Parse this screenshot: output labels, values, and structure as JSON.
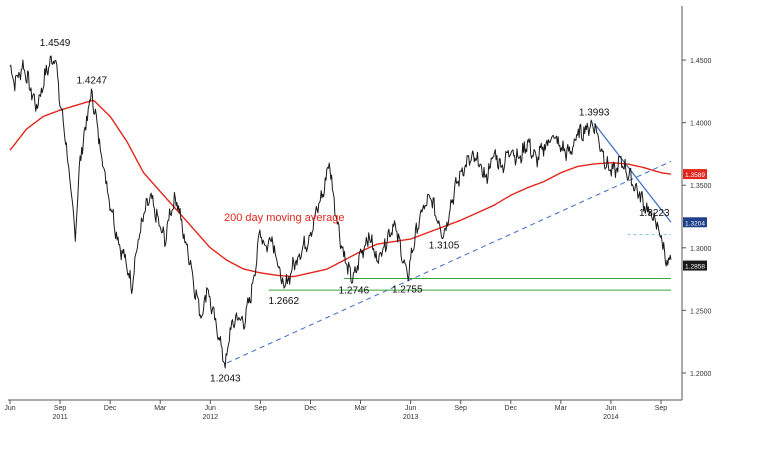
{
  "chart_data": {
    "type": "line",
    "colors": {
      "price": "#1a1a1a",
      "ma": "#e3261c",
      "support": "#3aa53a",
      "trend_down": "#3b6cc4",
      "trend_up": "#3b6cc4",
      "ma_tag_bg": "#e3261c",
      "last_tag_bg": "#1a1a1a",
      "trend_tag_bg": "#1f3f8a"
    },
    "ylim": [
      1.18,
      1.49
    ],
    "y_ticks": [
      "1.2000",
      "1.2500",
      "1.3000",
      "1.3500",
      "1.4000",
      "1.4500"
    ],
    "x_ticks": [
      {
        "label": "Jun",
        "t": 0
      },
      {
        "label": "Sep",
        "t": 3
      },
      {
        "label": "Dec",
        "t": 6
      },
      {
        "label": "Mar",
        "t": 9
      },
      {
        "label": "Jun",
        "t": 12
      },
      {
        "label": "Sep",
        "t": 15
      },
      {
        "label": "Dec",
        "t": 18
      },
      {
        "label": "Mar",
        "t": 21
      },
      {
        "label": "Jun",
        "t": 24
      },
      {
        "label": "Sep",
        "t": 27
      },
      {
        "label": "Dec",
        "t": 30
      },
      {
        "label": "Mar",
        "t": 33
      },
      {
        "label": "Jun",
        "t": 36
      },
      {
        "label": "Sep",
        "t": 39
      }
    ],
    "year_labels": [
      {
        "label": "2011",
        "t": 3
      },
      {
        "label": "2012",
        "t": 12
      },
      {
        "label": "2013",
        "t": 24
      },
      {
        "label": "2014",
        "t": 36
      }
    ],
    "ma_label": "200 day moving average",
    "tags": {
      "ma": "1.3589",
      "trend": "1.3204",
      "last": "1.2858"
    },
    "price_anchors": [
      [
        0,
        1.445
      ],
      [
        0.3,
        1.432
      ],
      [
        0.8,
        1.446
      ],
      [
        1.2,
        1.428
      ],
      [
        1.6,
        1.412
      ],
      [
        2.2,
        1.442
      ],
      [
        2.7,
        1.4549
      ],
      [
        3.0,
        1.415
      ],
      [
        3.3,
        1.392
      ],
      [
        3.6,
        1.35
      ],
      [
        3.9,
        1.31
      ],
      [
        4.2,
        1.37
      ],
      [
        4.5,
        1.395
      ],
      [
        4.9,
        1.4247
      ],
      [
        5.3,
        1.39
      ],
      [
        5.8,
        1.35
      ],
      [
        6.1,
        1.33
      ],
      [
        6.5,
        1.305
      ],
      [
        6.9,
        1.29
      ],
      [
        7.3,
        1.27
      ],
      [
        7.6,
        1.3
      ],
      [
        8.0,
        1.325
      ],
      [
        8.4,
        1.34
      ],
      [
        8.9,
        1.32
      ],
      [
        9.3,
        1.305
      ],
      [
        9.6,
        1.33
      ],
      [
        10.0,
        1.34
      ],
      [
        10.4,
        1.31
      ],
      [
        10.8,
        1.29
      ],
      [
        11.1,
        1.265
      ],
      [
        11.5,
        1.245
      ],
      [
        11.8,
        1.27
      ],
      [
        12.2,
        1.245
      ],
      [
        12.6,
        1.225
      ],
      [
        12.9,
        1.2043
      ],
      [
        13.2,
        1.235
      ],
      [
        13.6,
        1.245
      ],
      [
        14.0,
        1.24
      ],
      [
        14.4,
        1.26
      ],
      [
        14.7,
        1.285
      ],
      [
        15.0,
        1.315
      ],
      [
        15.3,
        1.3
      ],
      [
        15.7,
        1.31
      ],
      [
        16.0,
        1.29
      ],
      [
        16.4,
        1.2662
      ],
      [
        16.8,
        1.28
      ],
      [
        17.3,
        1.295
      ],
      [
        17.8,
        1.305
      ],
      [
        18.2,
        1.32
      ],
      [
        18.5,
        1.335
      ],
      [
        18.8,
        1.345
      ],
      [
        19.1,
        1.37
      ],
      [
        19.5,
        1.33
      ],
      [
        19.9,
        1.3
      ],
      [
        20.3,
        1.28
      ],
      [
        20.6,
        1.2746
      ],
      [
        21.0,
        1.295
      ],
      [
        21.5,
        1.31
      ],
      [
        22.0,
        1.29
      ],
      [
        22.5,
        1.305
      ],
      [
        23.0,
        1.32
      ],
      [
        23.4,
        1.3
      ],
      [
        23.8,
        1.2755
      ],
      [
        24.2,
        1.305
      ],
      [
        24.7,
        1.33
      ],
      [
        25.2,
        1.34
      ],
      [
        25.7,
        1.32
      ],
      [
        26.0,
        1.3105
      ],
      [
        26.5,
        1.34
      ],
      [
        27.0,
        1.36
      ],
      [
        27.5,
        1.37
      ],
      [
        28.0,
        1.37
      ],
      [
        28.5,
        1.355
      ],
      [
        29.0,
        1.375
      ],
      [
        29.5,
        1.365
      ],
      [
        30.0,
        1.38
      ],
      [
        30.5,
        1.37
      ],
      [
        31.0,
        1.385
      ],
      [
        31.5,
        1.37
      ],
      [
        32.0,
        1.38
      ],
      [
        32.5,
        1.39
      ],
      [
        33.0,
        1.38
      ],
      [
        33.5,
        1.375
      ],
      [
        34.0,
        1.39
      ],
      [
        34.5,
        1.395
      ],
      [
        35.0,
        1.3993
      ],
      [
        35.4,
        1.38
      ],
      [
        35.8,
        1.365
      ],
      [
        36.2,
        1.36
      ],
      [
        36.6,
        1.37
      ],
      [
        37.0,
        1.36
      ],
      [
        37.4,
        1.35
      ],
      [
        37.8,
        1.34
      ],
      [
        38.2,
        1.33
      ],
      [
        38.6,
        1.3223
      ],
      [
        39.0,
        1.31
      ],
      [
        39.3,
        1.29
      ],
      [
        39.6,
        1.2858
      ]
    ],
    "ma_anchors": [
      [
        0,
        1.378
      ],
      [
        1.0,
        1.395
      ],
      [
        2.0,
        1.405
      ],
      [
        3.0,
        1.41
      ],
      [
        4.0,
        1.414
      ],
      [
        5.0,
        1.418
      ],
      [
        6.0,
        1.405
      ],
      [
        7.0,
        1.385
      ],
      [
        8.0,
        1.36
      ],
      [
        9.0,
        1.345
      ],
      [
        10.0,
        1.33
      ],
      [
        11.0,
        1.315
      ],
      [
        12.0,
        1.3
      ],
      [
        13.0,
        1.29
      ],
      [
        14.0,
        1.283
      ],
      [
        15.0,
        1.28
      ],
      [
        16.0,
        1.278
      ],
      [
        17.0,
        1.277
      ],
      [
        18.0,
        1.28
      ],
      [
        19.0,
        1.283
      ],
      [
        20.0,
        1.29
      ],
      [
        21.0,
        1.297
      ],
      [
        22.0,
        1.303
      ],
      [
        23.0,
        1.305
      ],
      [
        24.0,
        1.307
      ],
      [
        25.0,
        1.312
      ],
      [
        26.0,
        1.317
      ],
      [
        27.0,
        1.322
      ],
      [
        28.0,
        1.328
      ],
      [
        29.0,
        1.334
      ],
      [
        30.0,
        1.342
      ],
      [
        31.0,
        1.348
      ],
      [
        32.0,
        1.353
      ],
      [
        33.0,
        1.36
      ],
      [
        34.0,
        1.365
      ],
      [
        35.0,
        1.367
      ],
      [
        36.0,
        1.368
      ],
      [
        37.0,
        1.367
      ],
      [
        38.0,
        1.364
      ],
      [
        39.0,
        1.36
      ],
      [
        39.6,
        1.3589
      ]
    ],
    "support_lines": [
      {
        "t1": 15.5,
        "t2": 39.6,
        "y": 1.2662
      },
      {
        "t1": 20.0,
        "t2": 39.6,
        "y": 1.2755
      }
    ],
    "resistance_dashed": {
      "t1": 37.0,
      "t2": 39.6,
      "y": 1.3105
    },
    "trend_down": {
      "t1": 35.0,
      "y1": 1.3993,
      "t2": 39.6,
      "y2": 1.3204
    },
    "trend_up": {
      "t1": 13.0,
      "y1": 1.208,
      "t2": 39.6,
      "y2": 1.369
    },
    "annotations": [
      {
        "text": "1.4549",
        "t": 2.7,
        "y": 1.4549,
        "dy": -8
      },
      {
        "text": "1.4247",
        "t": 4.9,
        "y": 1.4247,
        "dy": -8
      },
      {
        "text": "1.2043",
        "t": 12.9,
        "y": 1.2043,
        "dy": 14
      },
      {
        "text": "1.2662",
        "t": 16.4,
        "y": 1.2662,
        "dy": 14
      },
      {
        "text": "1.2746",
        "t": 20.6,
        "y": 1.2746,
        "dy": 14
      },
      {
        "text": "1.2755",
        "t": 23.8,
        "y": 1.2755,
        "dy": 14
      },
      {
        "text": "1.3105",
        "t": 26.0,
        "y": 1.3105,
        "dy": 14
      },
      {
        "text": "1.3993",
        "t": 35.0,
        "y": 1.3993,
        "dy": -8
      },
      {
        "text": "1.3223",
        "t": 38.6,
        "y": 1.3223,
        "dy": -4
      }
    ]
  }
}
